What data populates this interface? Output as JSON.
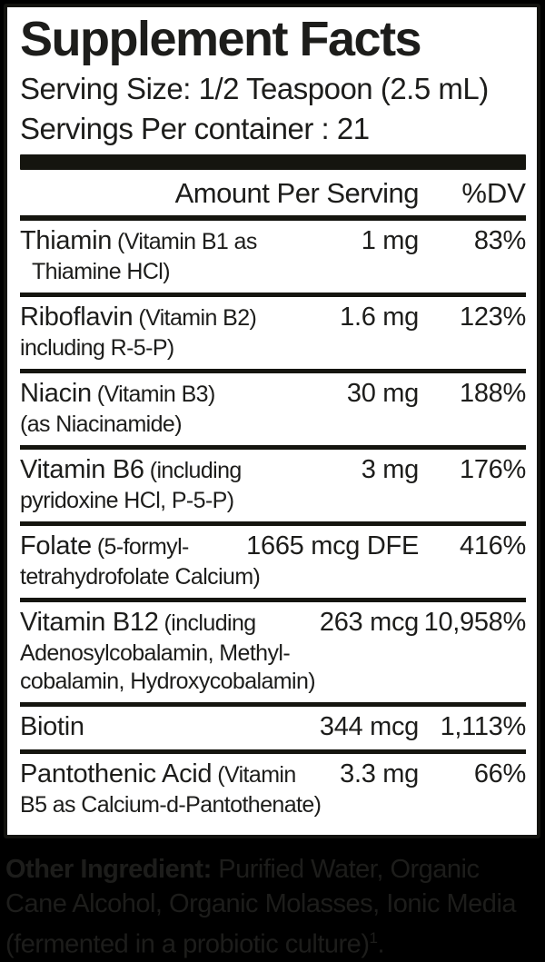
{
  "label": {
    "title": "Supplement Facts",
    "serving_size": "Serving Size: 1/2 Teaspoon (2.5 mL)",
    "servings_per_container": "Servings Per container : 21",
    "columns": {
      "amount": "Amount Per Serving",
      "dv": "%DV"
    },
    "rows": [
      {
        "name": "Thiamin",
        "detail": "(Vitamin B1 as",
        "line2": "Thiamine HCl)",
        "indent2": true,
        "amount": "1 mg",
        "dv": "83%"
      },
      {
        "name": "Riboflavin",
        "detail": "(Vitamin B2)",
        "line2": "including R-5-P)",
        "amount": "1.6 mg",
        "dv": "123%"
      },
      {
        "name": "Niacin",
        "detail": "(Vitamin B3)",
        "line2": "(as Niacinamide)",
        "amount": "30 mg",
        "dv": "188%"
      },
      {
        "name": "Vitamin B6",
        "detail": "(including",
        "line2": "pyridoxine HCl, P-5-P)",
        "amount": "3 mg",
        "dv": "176%"
      },
      {
        "name": "Folate",
        "detail": "(5-formyl-",
        "line2": "tetrahydrofolate Calcium)",
        "amount": "1665 mcg DFE",
        "dv": "416%"
      },
      {
        "name": "Vitamin B12",
        "detail": "(including",
        "line2": "Adenosylcobalamin, Methyl-",
        "line3": "cobalamin, Hydroxycobalamin)",
        "amount": "263 mcg",
        "dv": "10,958%"
      },
      {
        "name": "Biotin",
        "amount": "344 mcg",
        "dv": "1,113%"
      },
      {
        "name": "Pantothenic Acid",
        "detail": "(Vitamin",
        "line2": "B5 as Calcium-d-Pantothenate)",
        "amount": "3.3 mg",
        "dv": "66%"
      }
    ]
  },
  "footer": {
    "lead": "Other Ingredient:",
    "text": " Purified Water, Organic Cane Alcohol, Organic Molasses, Ionic Media (fermented in a probiotic culture)",
    "sup": "1",
    "end": "."
  },
  "colors": {
    "ink": "#1d1d1b",
    "paper": "#ffffff",
    "background": "#000000",
    "rule": "#15150f"
  }
}
